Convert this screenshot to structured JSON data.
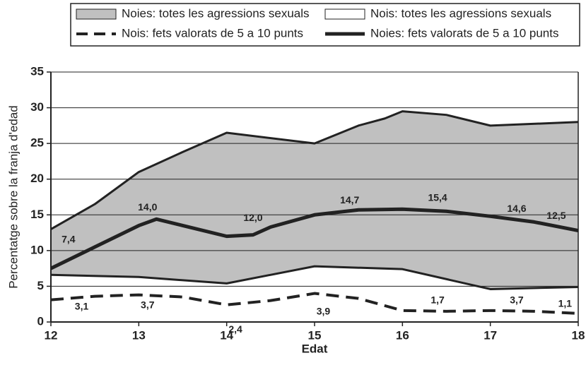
{
  "chart_data": {
    "type": "line",
    "x_label": "Edat",
    "y_label": "Percentatge sobre la franja d'edad",
    "xlim": [
      12,
      18
    ],
    "ylim": [
      0,
      35
    ],
    "xticks": [
      12,
      13,
      14,
      15,
      16,
      17,
      18
    ],
    "yticks": [
      0,
      5,
      10,
      15,
      20,
      25,
      30,
      35
    ],
    "grid": true,
    "series": [
      {
        "name": "Noies: totes les agressions sexuals",
        "style": "area",
        "color": "#c0c0c0",
        "x": [
          12,
          12.5,
          13,
          13.5,
          14,
          15,
          15.5,
          15.8,
          16,
          16.5,
          17,
          18
        ],
        "values": [
          13,
          16.5,
          21,
          23.8,
          26.5,
          25,
          27.5,
          28.5,
          29.5,
          29,
          27.5,
          28
        ]
      },
      {
        "name": "Nois: totes les agressions sexuals",
        "style": "area",
        "color": "#ffffff",
        "x": [
          12,
          13,
          14,
          15,
          16,
          17,
          18
        ],
        "values": [
          6.6,
          6.3,
          5.4,
          7.8,
          7.4,
          4.6,
          4.9
        ]
      },
      {
        "name": "Nois: fets valorats de 5 a 10 punts",
        "style": "dashed",
        "color": "#222222",
        "x": [
          12,
          12.5,
          13,
          13.5,
          14,
          14.5,
          15,
          15.5,
          16,
          16.5,
          17,
          17.5,
          18
        ],
        "values": [
          3.1,
          3.6,
          3.8,
          3.5,
          2.4,
          3,
          4,
          3.3,
          1.6,
          1.5,
          1.6,
          1.5,
          1.2
        ]
      },
      {
        "name": "Noies: fets valorats de 5 a 10 punts",
        "style": "solid",
        "color": "#222222",
        "x": [
          12,
          12.5,
          13,
          13.2,
          13.5,
          14,
          14.3,
          14.5,
          15,
          15.5,
          16,
          16.5,
          17,
          17.5,
          18
        ],
        "values": [
          7.5,
          10.5,
          13.5,
          14.4,
          13.5,
          12,
          12.2,
          13.3,
          15,
          15.7,
          15.8,
          15.5,
          14.8,
          14,
          12.8
        ]
      }
    ],
    "annotations": [
      {
        "text": "7,4",
        "x": 12.2,
        "y": 11.5
      },
      {
        "text": "14,0",
        "x": 13.1,
        "y": 16
      },
      {
        "text": "12,0",
        "x": 14.3,
        "y": 14.5
      },
      {
        "text": "14,7",
        "x": 15.4,
        "y": 17
      },
      {
        "text": "15,4",
        "x": 16.4,
        "y": 17.3
      },
      {
        "text": "14,6",
        "x": 17.3,
        "y": 15.8
      },
      {
        "text": "12,5",
        "x": 17.75,
        "y": 14.8
      },
      {
        "text": "3,1",
        "x": 12.35,
        "y": 2.1
      },
      {
        "text": "3,7",
        "x": 13.1,
        "y": 2.3
      },
      {
        "text": "2,4",
        "x": 14.1,
        "y": -1.1
      },
      {
        "text": "3,9",
        "x": 15.1,
        "y": 1.4
      },
      {
        "text": "1,7",
        "x": 16.4,
        "y": 3
      },
      {
        "text": "3,7",
        "x": 17.3,
        "y": 3
      },
      {
        "text": "1,1",
        "x": 17.85,
        "y": 2.5
      }
    ]
  }
}
